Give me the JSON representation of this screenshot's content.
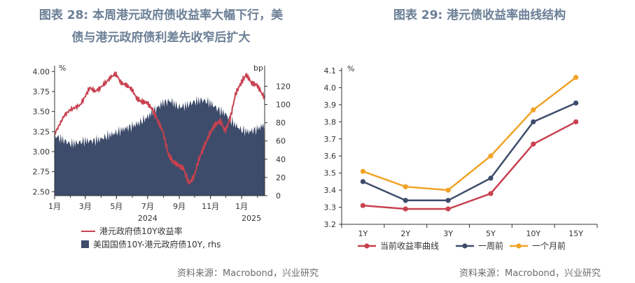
{
  "chart_data": [
    {
      "type": "line+area",
      "title": "图表 28: 本周港元政府债收益率大幅下行，美债与港元政府债利差先收窄后扩大",
      "title_lines": [
        "图表 28: 本周港元政府债收益率大幅下行，美",
        "债与港元政府债利差先收窄后扩大"
      ],
      "left_unit": "%",
      "right_unit": "bp",
      "ylim_left": [
        2.45,
        4.02
      ],
      "ylim_right": [
        0,
        138
      ],
      "yticks_left": [
        "4.00",
        "3.75",
        "3.50",
        "3.25",
        "3.00",
        "2.75",
        "2.50"
      ],
      "yticks_right": [
        "120",
        "100",
        "80",
        "60",
        "40",
        "20",
        "0"
      ],
      "x_range": [
        "2024-01-01",
        "2025-02-15"
      ],
      "xticks": [
        "1月",
        "3月",
        "5月",
        "7月",
        "9月",
        "11月",
        "1月"
      ],
      "year_labels": [
        "2024",
        "2025"
      ],
      "series": [
        {
          "name": "港元政府债10Y收益率",
          "axis": "left",
          "color": "#c8414f",
          "points": [
            [
              "2024-01-01",
              3.22
            ],
            [
              "2024-01-10",
              3.33
            ],
            [
              "2024-01-20",
              3.45
            ],
            [
              "2024-01-31",
              3.52
            ],
            [
              "2024-02-10",
              3.55
            ],
            [
              "2024-02-20",
              3.58
            ],
            [
              "2024-02-29",
              3.68
            ],
            [
              "2024-03-10",
              3.8
            ],
            [
              "2024-03-20",
              3.75
            ],
            [
              "2024-03-31",
              3.8
            ],
            [
              "2024-04-10",
              3.86
            ],
            [
              "2024-04-20",
              3.93
            ],
            [
              "2024-04-30",
              3.97
            ],
            [
              "2024-05-10",
              3.86
            ],
            [
              "2024-05-20",
              3.83
            ],
            [
              "2024-05-31",
              3.78
            ],
            [
              "2024-06-10",
              3.66
            ],
            [
              "2024-06-20",
              3.62
            ],
            [
              "2024-06-30",
              3.61
            ],
            [
              "2024-07-10",
              3.53
            ],
            [
              "2024-07-20",
              3.4
            ],
            [
              "2024-07-31",
              3.25
            ],
            [
              "2024-08-10",
              2.98
            ],
            [
              "2024-08-20",
              2.87
            ],
            [
              "2024-08-31",
              2.83
            ],
            [
              "2024-09-10",
              2.78
            ],
            [
              "2024-09-20",
              2.6
            ],
            [
              "2024-09-30",
              2.69
            ],
            [
              "2024-10-10",
              2.92
            ],
            [
              "2024-10-20",
              3.07
            ],
            [
              "2024-10-31",
              3.23
            ],
            [
              "2024-11-10",
              3.34
            ],
            [
              "2024-11-20",
              3.38
            ],
            [
              "2024-11-30",
              3.26
            ],
            [
              "2024-12-10",
              3.42
            ],
            [
              "2024-12-20",
              3.72
            ],
            [
              "2024-12-31",
              3.86
            ],
            [
              "2025-01-10",
              3.96
            ],
            [
              "2025-01-20",
              3.86
            ],
            [
              "2025-01-31",
              3.83
            ],
            [
              "2025-02-10",
              3.72
            ],
            [
              "2025-02-15",
              3.67
            ]
          ]
        },
        {
          "name": "美国国债10Y-港元政府债10Y, rhs",
          "axis": "right",
          "color": "#3e4c6b",
          "points": [
            [
              "2024-01-01",
              66
            ],
            [
              "2024-01-15",
              62
            ],
            [
              "2024-01-31",
              57
            ],
            [
              "2024-02-15",
              58
            ],
            [
              "2024-02-29",
              60
            ],
            [
              "2024-03-15",
              60
            ],
            [
              "2024-03-31",
              62
            ],
            [
              "2024-04-15",
              66
            ],
            [
              "2024-04-30",
              69
            ],
            [
              "2024-05-15",
              73
            ],
            [
              "2024-05-31",
              76
            ],
            [
              "2024-06-15",
              80
            ],
            [
              "2024-06-30",
              86
            ],
            [
              "2024-07-15",
              94
            ],
            [
              "2024-07-31",
              102
            ],
            [
              "2024-08-15",
              104
            ],
            [
              "2024-08-31",
              97
            ],
            [
              "2024-09-15",
              99
            ],
            [
              "2024-09-30",
              103
            ],
            [
              "2024-10-15",
              105
            ],
            [
              "2024-10-31",
              102
            ],
            [
              "2024-11-15",
              95
            ],
            [
              "2024-11-30",
              90
            ],
            [
              "2024-12-15",
              80
            ],
            [
              "2024-12-31",
              72
            ],
            [
              "2025-01-15",
              70
            ],
            [
              "2025-01-31",
              73
            ],
            [
              "2025-02-15",
              78
            ]
          ]
        }
      ]
    },
    {
      "type": "line",
      "title": "图表 29: 港元债收益率曲线结构",
      "y_unit": "%",
      "ylim": [
        3.2,
        4.1
      ],
      "yticks": [
        "4.1",
        "4.0",
        "3.9",
        "3.8",
        "3.7",
        "3.6",
        "3.5",
        "3.4",
        "3.3",
        "3.2"
      ],
      "categories": [
        "1Y",
        "2Y",
        "3Y",
        "5Y",
        "10Y",
        "15Y"
      ],
      "series": [
        {
          "name": "当前收益率曲线",
          "color": "#c8414f",
          "values": [
            3.31,
            3.29,
            3.29,
            3.38,
            3.67,
            3.8
          ]
        },
        {
          "name": "一周前",
          "color": "#3e4c6b",
          "values": [
            3.45,
            3.34,
            3.34,
            3.47,
            3.8,
            3.91
          ]
        },
        {
          "name": "一个月前",
          "color": "#f0a326",
          "values": [
            3.51,
            3.42,
            3.4,
            3.6,
            3.87,
            4.06
          ]
        }
      ]
    }
  ],
  "source_left": "资料来源：Macrobond，兴业研究",
  "source_right": "资料来源：Macrobond，兴业研究"
}
